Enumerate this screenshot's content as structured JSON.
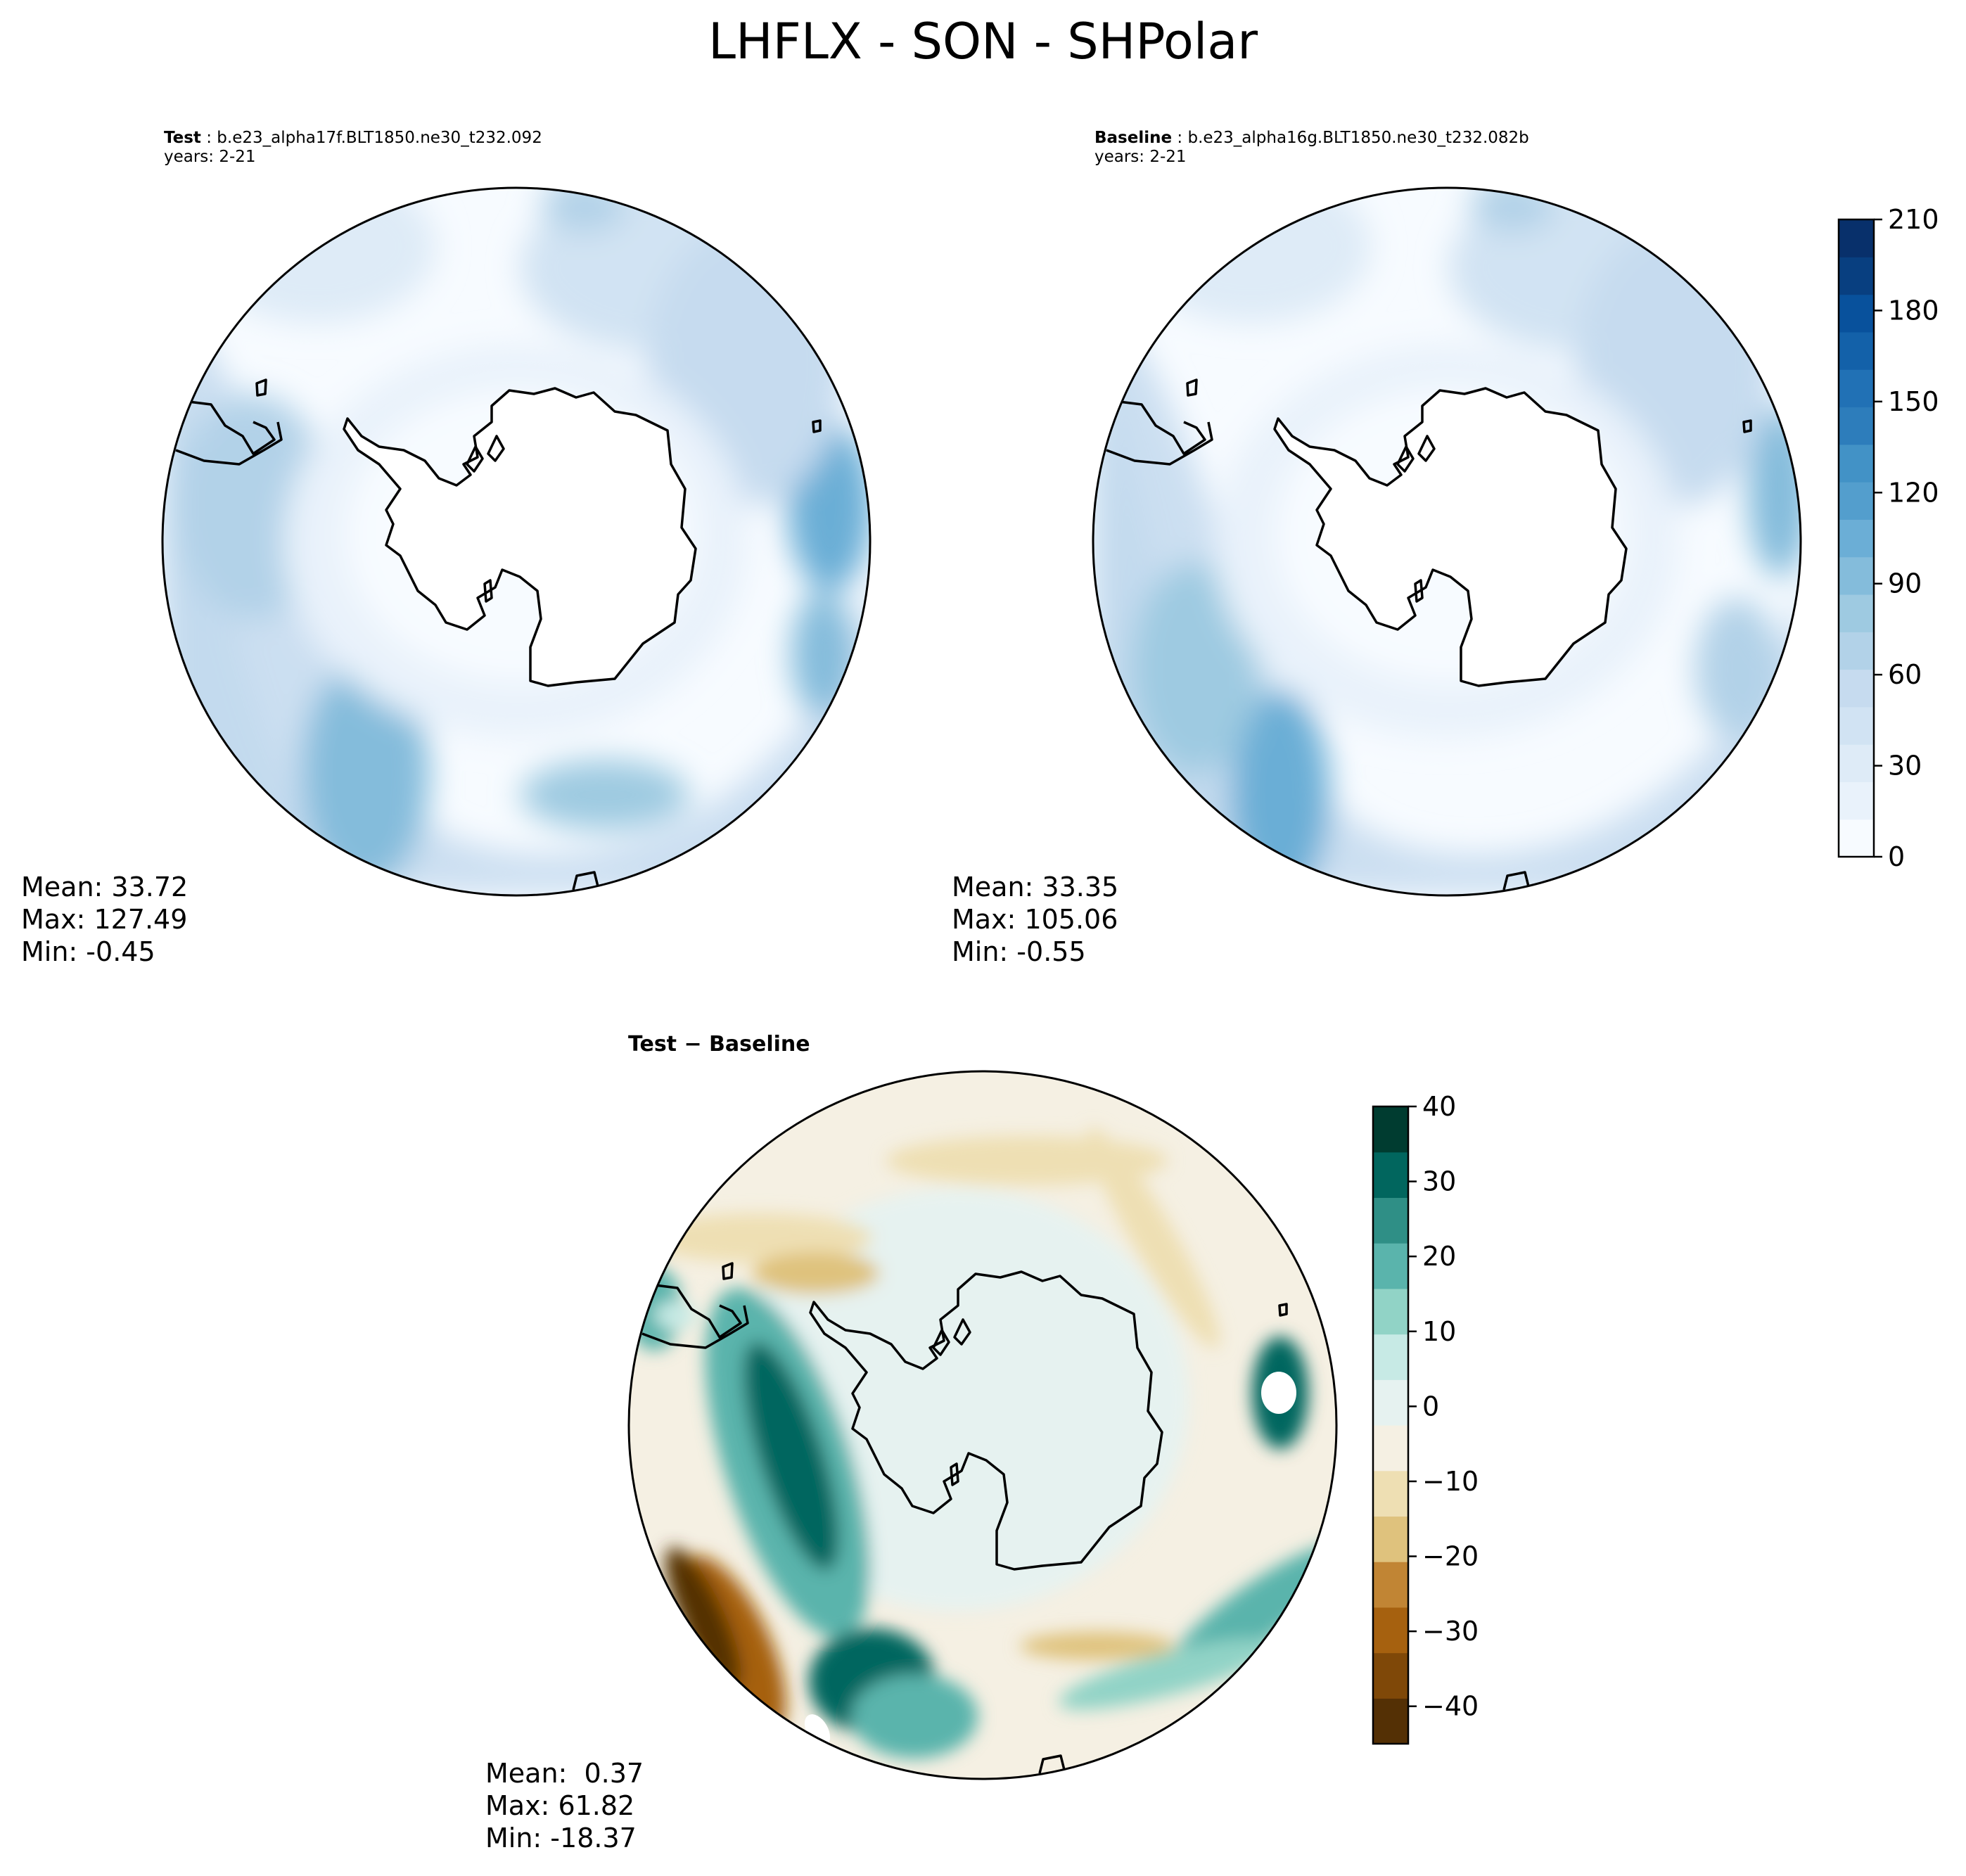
{
  "figure": {
    "title": "LHFLX - SON - SHPolar"
  },
  "chart_data": [
    {
      "type": "heatmap",
      "panel": "test",
      "title_label": "Test",
      "title_case": "b.e23_alpha17f.BLT1850.ne30_t232.092",
      "title_years": "years: 2-21",
      "projection": "south-polar-stereographic",
      "stats": {
        "mean": "Mean: 33.72",
        "max": "Max: 127.49",
        "min": "Min: -0.45"
      },
      "colormap": "Blues",
      "levels": [
        0,
        30,
        60,
        90,
        120,
        150,
        180,
        210
      ]
    },
    {
      "type": "heatmap",
      "panel": "baseline",
      "title_label": "Baseline",
      "title_case": "b.e23_alpha16g.BLT1850.ne30_t232.082b",
      "title_years": "years: 2-21",
      "projection": "south-polar-stereographic",
      "stats": {
        "mean": "Mean: 33.35",
        "max": "Max: 105.06",
        "min": "Min: -0.55"
      },
      "colormap": "Blues",
      "levels": [
        0,
        30,
        60,
        90,
        120,
        150,
        180,
        210
      ]
    },
    {
      "type": "heatmap",
      "panel": "difference",
      "title_label": "Test − Baseline",
      "projection": "south-polar-stereographic",
      "stats": {
        "mean": "Mean:  0.37",
        "max": "Max: 61.82",
        "min": "Min: -18.37"
      },
      "colormap": "BrBG",
      "levels": [
        -45,
        -40,
        -30,
        -20,
        -10,
        0,
        10,
        20,
        30,
        40
      ],
      "tick_labels": [
        "−40",
        "−30",
        "−20",
        "−10",
        "0",
        "10",
        "20",
        "30",
        "40"
      ]
    }
  ],
  "colorbars": {
    "abs": {
      "ticks": [
        "0",
        "30",
        "60",
        "90",
        "120",
        "150",
        "180",
        "210"
      ],
      "values": [
        0,
        30,
        60,
        90,
        120,
        150,
        180,
        210
      ],
      "min": 0,
      "max": 210
    },
    "diff": {
      "ticks": [
        "−40",
        "−30",
        "−20",
        "−10",
        "0",
        "10",
        "20",
        "30",
        "40"
      ],
      "values": [
        -40,
        -30,
        -20,
        -10,
        0,
        10,
        20,
        30,
        40
      ],
      "min": -45,
      "max": 40
    }
  },
  "colors": {
    "blues": [
      "#f7fbff",
      "#e9f2fb",
      "#deebf7",
      "#d1e3f3",
      "#c6dbef",
      "#b2d2e8",
      "#9ecae1",
      "#84bcdb",
      "#6baed6",
      "#539ecd",
      "#4292c6",
      "#2d7dbb",
      "#2171b5",
      "#1361a9",
      "#08519c",
      "#083f80",
      "#08306b"
    ],
    "brbg": [
      "#543005",
      "#7f4808",
      "#a6610f",
      "#c18534",
      "#dfc27d",
      "#eedfb3",
      "#f5f0e3",
      "#e6f2f0",
      "#c7eae5",
      "#91d3c6",
      "#5ab4ac",
      "#2f8f86",
      "#01665e",
      "#003c30"
    ],
    "coastline": "#000000"
  }
}
